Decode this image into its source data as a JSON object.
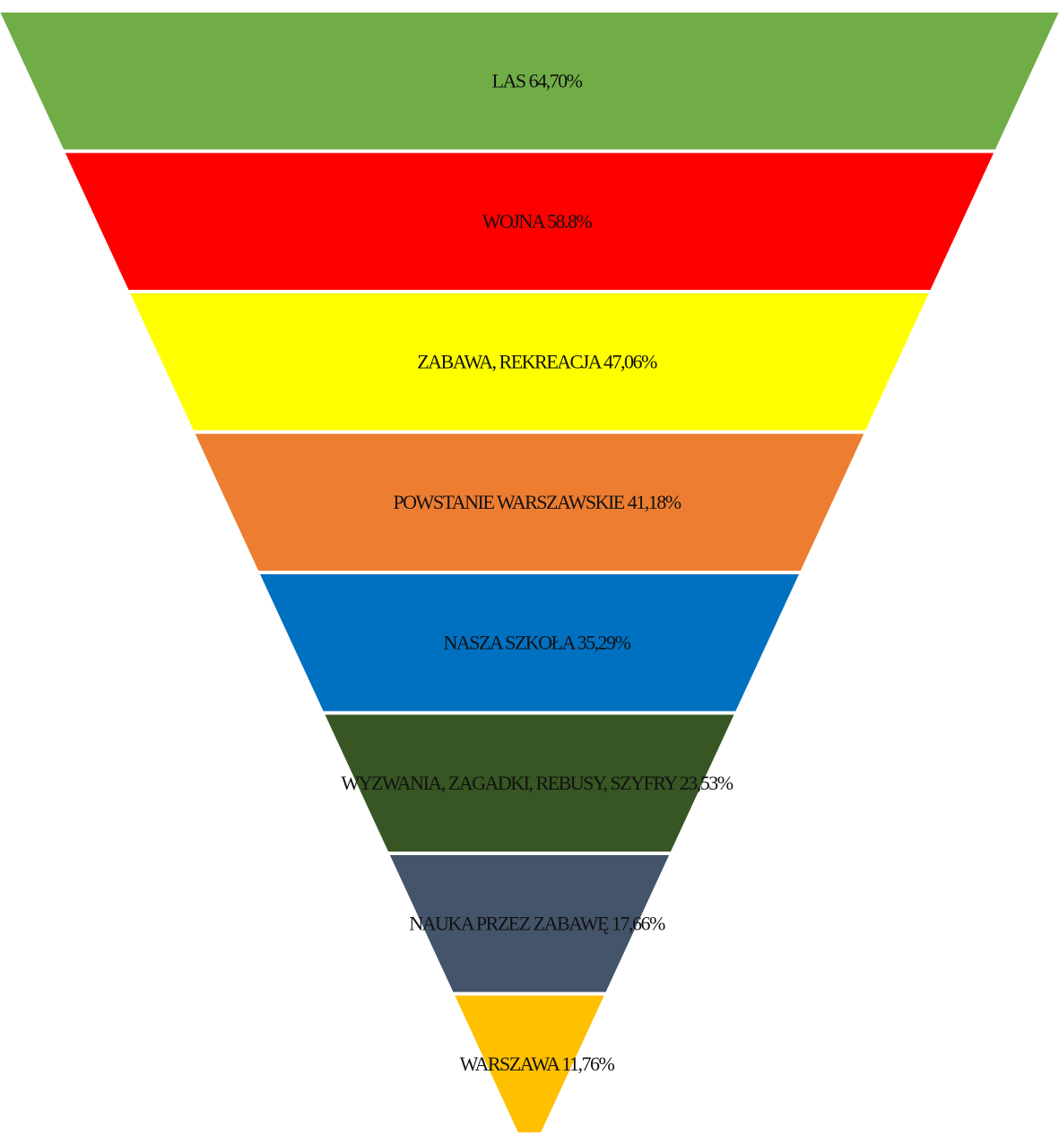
{
  "chart_data": {
    "type": "funnel",
    "unit": "%",
    "categories": [
      "LAS",
      "WOJNA",
      "ZABAWA, REKREACJA",
      "POWSTANIE WARSZAWSKIE",
      "NASZA SZKOŁA",
      "WYZWANIA, ZAGADKI, REBUSY, SZYFRY",
      "NAUKA PRZEZ ZABAWĘ",
      "WARSZAWA"
    ],
    "values": [
      64.7,
      58.8,
      47.06,
      41.18,
      35.29,
      23.53,
      17.66,
      11.76
    ],
    "labels": [
      "LAS    64,70%",
      "WOJNA  58.8%",
      "ZABAWA, REKREACJA  47,06%",
      "POWSTANIE WARSZAWSKIE  41,18%",
      "NASZA SZKOŁA  35,29%",
      "WYZWANIA, ZAGADKI, REBUSY, SZYFRY   23,53%",
      "NAUKA PRZEZ ZABAWĘ  17,66%",
      "WARSZAWA 11,76%"
    ],
    "colors": [
      "#70AD47",
      "#FF0000",
      "#FFFF00",
      "#ED7D31",
      "#0070C0",
      "#375623",
      "#44546A",
      "#FFC000"
    ]
  }
}
